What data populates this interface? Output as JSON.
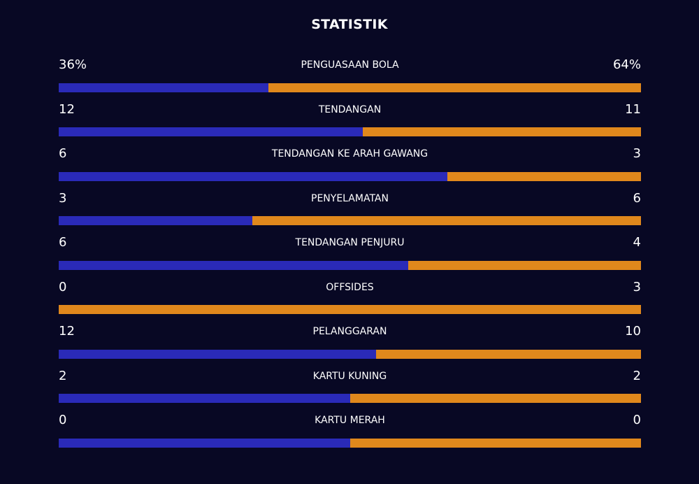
{
  "title": "STATISTIK",
  "colors": {
    "background": "#080824",
    "home_bar": "#2a2ab8",
    "away_bar": "#e0881c",
    "text": "#ffffff"
  },
  "stats": [
    {
      "label": "PENGUASAAN BOLA",
      "home": "36%",
      "away": "64%",
      "home_share": 0.36
    },
    {
      "label": "TENDANGAN",
      "home": "12",
      "away": "11",
      "home_share": 0.522
    },
    {
      "label": "TENDANGAN KE ARAH GAWANG",
      "home": "6",
      "away": "3",
      "home_share": 0.667
    },
    {
      "label": "PENYELAMATAN",
      "home": "3",
      "away": "6",
      "home_share": 0.333
    },
    {
      "label": "TENDANGAN PENJURU",
      "home": "6",
      "away": "4",
      "home_share": 0.6
    },
    {
      "label": "OFFSIDES",
      "home": "0",
      "away": "3",
      "home_share": 0.0
    },
    {
      "label": "PELANGGARAN",
      "home": "12",
      "away": "10",
      "home_share": 0.545
    },
    {
      "label": "KARTU KUNING",
      "home": "2",
      "away": "2",
      "home_share": 0.5
    },
    {
      "label": "KARTU MERAH",
      "home": "0",
      "away": "0",
      "home_share": 0.5
    }
  ]
}
